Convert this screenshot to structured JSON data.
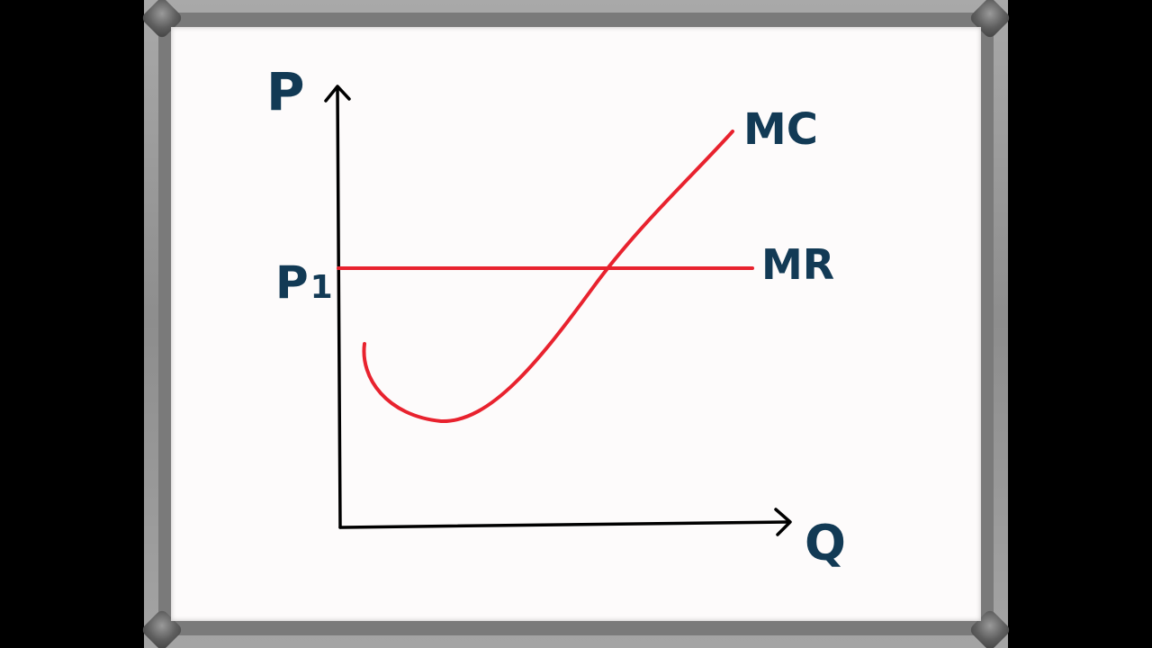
{
  "diagram": {
    "y_axis_label": "P",
    "x_axis_label": "Q",
    "price_label_main": "P",
    "price_label_sub": "1",
    "curves": [
      {
        "id": "mc",
        "label": "MC"
      },
      {
        "id": "mr",
        "label": "MR"
      }
    ]
  },
  "colors": {
    "curve": "#e8222e",
    "axis": "#000000",
    "label": "#123a55",
    "board": "#fdfbfb",
    "frame": "#9a9a9a"
  }
}
